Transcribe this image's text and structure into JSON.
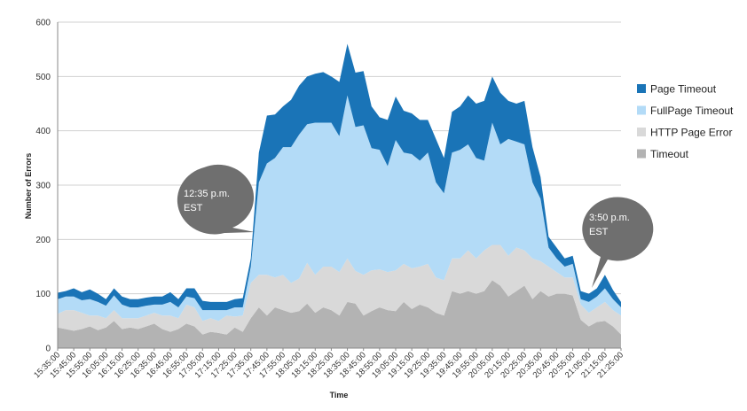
{
  "chart_data": {
    "type": "area",
    "stacked": true,
    "xlabel": "Time",
    "ylabel": "Number of Errors",
    "ylim": [
      0,
      600
    ],
    "yticks": [
      0,
      100,
      200,
      300,
      400,
      500,
      600
    ],
    "grid": true,
    "legend_position": "right",
    "x": [
      "15:35:00",
      "15:40:00",
      "15:45:00",
      "15:50:00",
      "15:55:00",
      "16:00:00",
      "16:05:00",
      "16:10:00",
      "16:15:00",
      "16:20:00",
      "16:25:00",
      "16:30:00",
      "16:35:00",
      "16:40:00",
      "16:45:00",
      "16:50:00",
      "16:55:00",
      "17:00:00",
      "17:05:00",
      "17:10:00",
      "17:15:00",
      "17:20:00",
      "17:25:00",
      "17:30:00",
      "17:35:00",
      "17:40:00",
      "17:45:00",
      "17:50:00",
      "17:55:00",
      "18:00:00",
      "18:05:00",
      "18:10:00",
      "18:15:00",
      "18:20:00",
      "18:25:00",
      "18:30:00",
      "18:35:00",
      "18:40:00",
      "18:45:00",
      "18:50:00",
      "18:55:00",
      "19:00:00",
      "19:05:00",
      "19:10:00",
      "19:15:00",
      "19:20:00",
      "19:25:00",
      "19:30:00",
      "19:35:00",
      "19:40:00",
      "19:45:00",
      "19:50:00",
      "19:55:00",
      "20:00:00",
      "20:05:00",
      "20:10:00",
      "20:15:00",
      "20:20:00",
      "20:25:00",
      "20:30:00",
      "20:35:00",
      "20:40:00",
      "20:45:00",
      "20:50:00",
      "20:55:00",
      "21:00:00",
      "21:05:00",
      "21:10:00",
      "21:15:00",
      "21:20:00",
      "21:25:00"
    ],
    "x_tick_labels": [
      "15:35:00",
      "15:45:00",
      "15:55:00",
      "16:05:00",
      "16:15:00",
      "16:25:00",
      "16:35:00",
      "16:45:00",
      "16:55:00",
      "17:05:00",
      "17:15:00",
      "17:25:00",
      "17:35:00",
      "17:45:00",
      "17:55:00",
      "18:05:00",
      "18:15:00",
      "18:25:00",
      "18:35:00",
      "18:45:00",
      "18:55:00",
      "19:05:00",
      "19:15:00",
      "19:25:00",
      "19:35:00",
      "19:45:00",
      "19:55:00",
      "20:05:00",
      "20:15:00",
      "20:25:00",
      "20:35:00",
      "20:45:00",
      "20:55:00",
      "21:05:00",
      "21:15:00",
      "21:25:00"
    ],
    "series": [
      {
        "name": "Timeout",
        "color": "#b3b3b3",
        "values": [
          38,
          35,
          32,
          35,
          40,
          33,
          38,
          50,
          35,
          38,
          35,
          40,
          45,
          35,
          30,
          35,
          45,
          40,
          25,
          30,
          28,
          25,
          38,
          30,
          55,
          75,
          60,
          75,
          70,
          65,
          68,
          82,
          65,
          75,
          70,
          60,
          85,
          82,
          60,
          68,
          75,
          70,
          68,
          85,
          72,
          80,
          75,
          65,
          60,
          105,
          100,
          105,
          100,
          105,
          125,
          115,
          95,
          105,
          115,
          90,
          105,
          95,
          100,
          100,
          97,
          52,
          40,
          48,
          50,
          40,
          25
        ]
      },
      {
        "name": "HTTP Page Error",
        "color": "#d9d9d9",
        "values": [
          25,
          35,
          38,
          30,
          20,
          27,
          17,
          20,
          20,
          17,
          20,
          20,
          20,
          25,
          30,
          20,
          35,
          35,
          25,
          25,
          22,
          35,
          20,
          30,
          65,
          60,
          75,
          55,
          65,
          55,
          60,
          75,
          70,
          75,
          80,
          80,
          80,
          60,
          75,
          75,
          70,
          70,
          75,
          70,
          75,
          70,
          80,
          65,
          65,
          60,
          65,
          75,
          65,
          75,
          65,
          75,
          75,
          80,
          65,
          75,
          55,
          55,
          40,
          30,
          33,
          28,
          25,
          27,
          35,
          30,
          35
        ]
      },
      {
        "name": "FullPage Timeout",
        "color": "#b3dbf7",
        "values": [
          27,
          25,
          25,
          23,
          30,
          25,
          23,
          27,
          25,
          20,
          20,
          18,
          15,
          20,
          25,
          20,
          15,
          17,
          20,
          15,
          20,
          10,
          17,
          15,
          30,
          170,
          205,
          220,
          235,
          250,
          265,
          255,
          280,
          265,
          265,
          250,
          300,
          265,
          275,
          225,
          220,
          195,
          240,
          205,
          210,
          195,
          205,
          175,
          160,
          195,
          200,
          195,
          185,
          165,
          225,
          185,
          215,
          195,
          195,
          140,
          115,
          35,
          25,
          20,
          25,
          10,
          20,
          20,
          25,
          20,
          15
        ]
      },
      {
        "name": "Page Timeout",
        "color": "#1a74b7",
        "values": [
          12,
          10,
          15,
          15,
          18,
          15,
          12,
          13,
          15,
          15,
          15,
          15,
          15,
          15,
          18,
          15,
          15,
          18,
          17,
          15,
          15,
          15,
          15,
          17,
          15,
          55,
          88,
          80,
          75,
          87,
          90,
          88,
          90,
          93,
          85,
          100,
          95,
          100,
          100,
          77,
          60,
          85,
          80,
          77,
          75,
          75,
          60,
          80,
          65,
          75,
          80,
          90,
          100,
          110,
          85,
          95,
          70,
          70,
          80,
          65,
          40,
          20,
          20,
          15,
          15,
          15,
          15,
          15,
          25,
          17,
          10
        ]
      }
    ],
    "annotations": [
      {
        "text_line1": "12:35 p.m.",
        "text_line2": "EST",
        "x": "17:35:00"
      },
      {
        "text_line1": "3:50 p.m.",
        "text_line2": "EST",
        "x": "21:05:00"
      }
    ]
  }
}
